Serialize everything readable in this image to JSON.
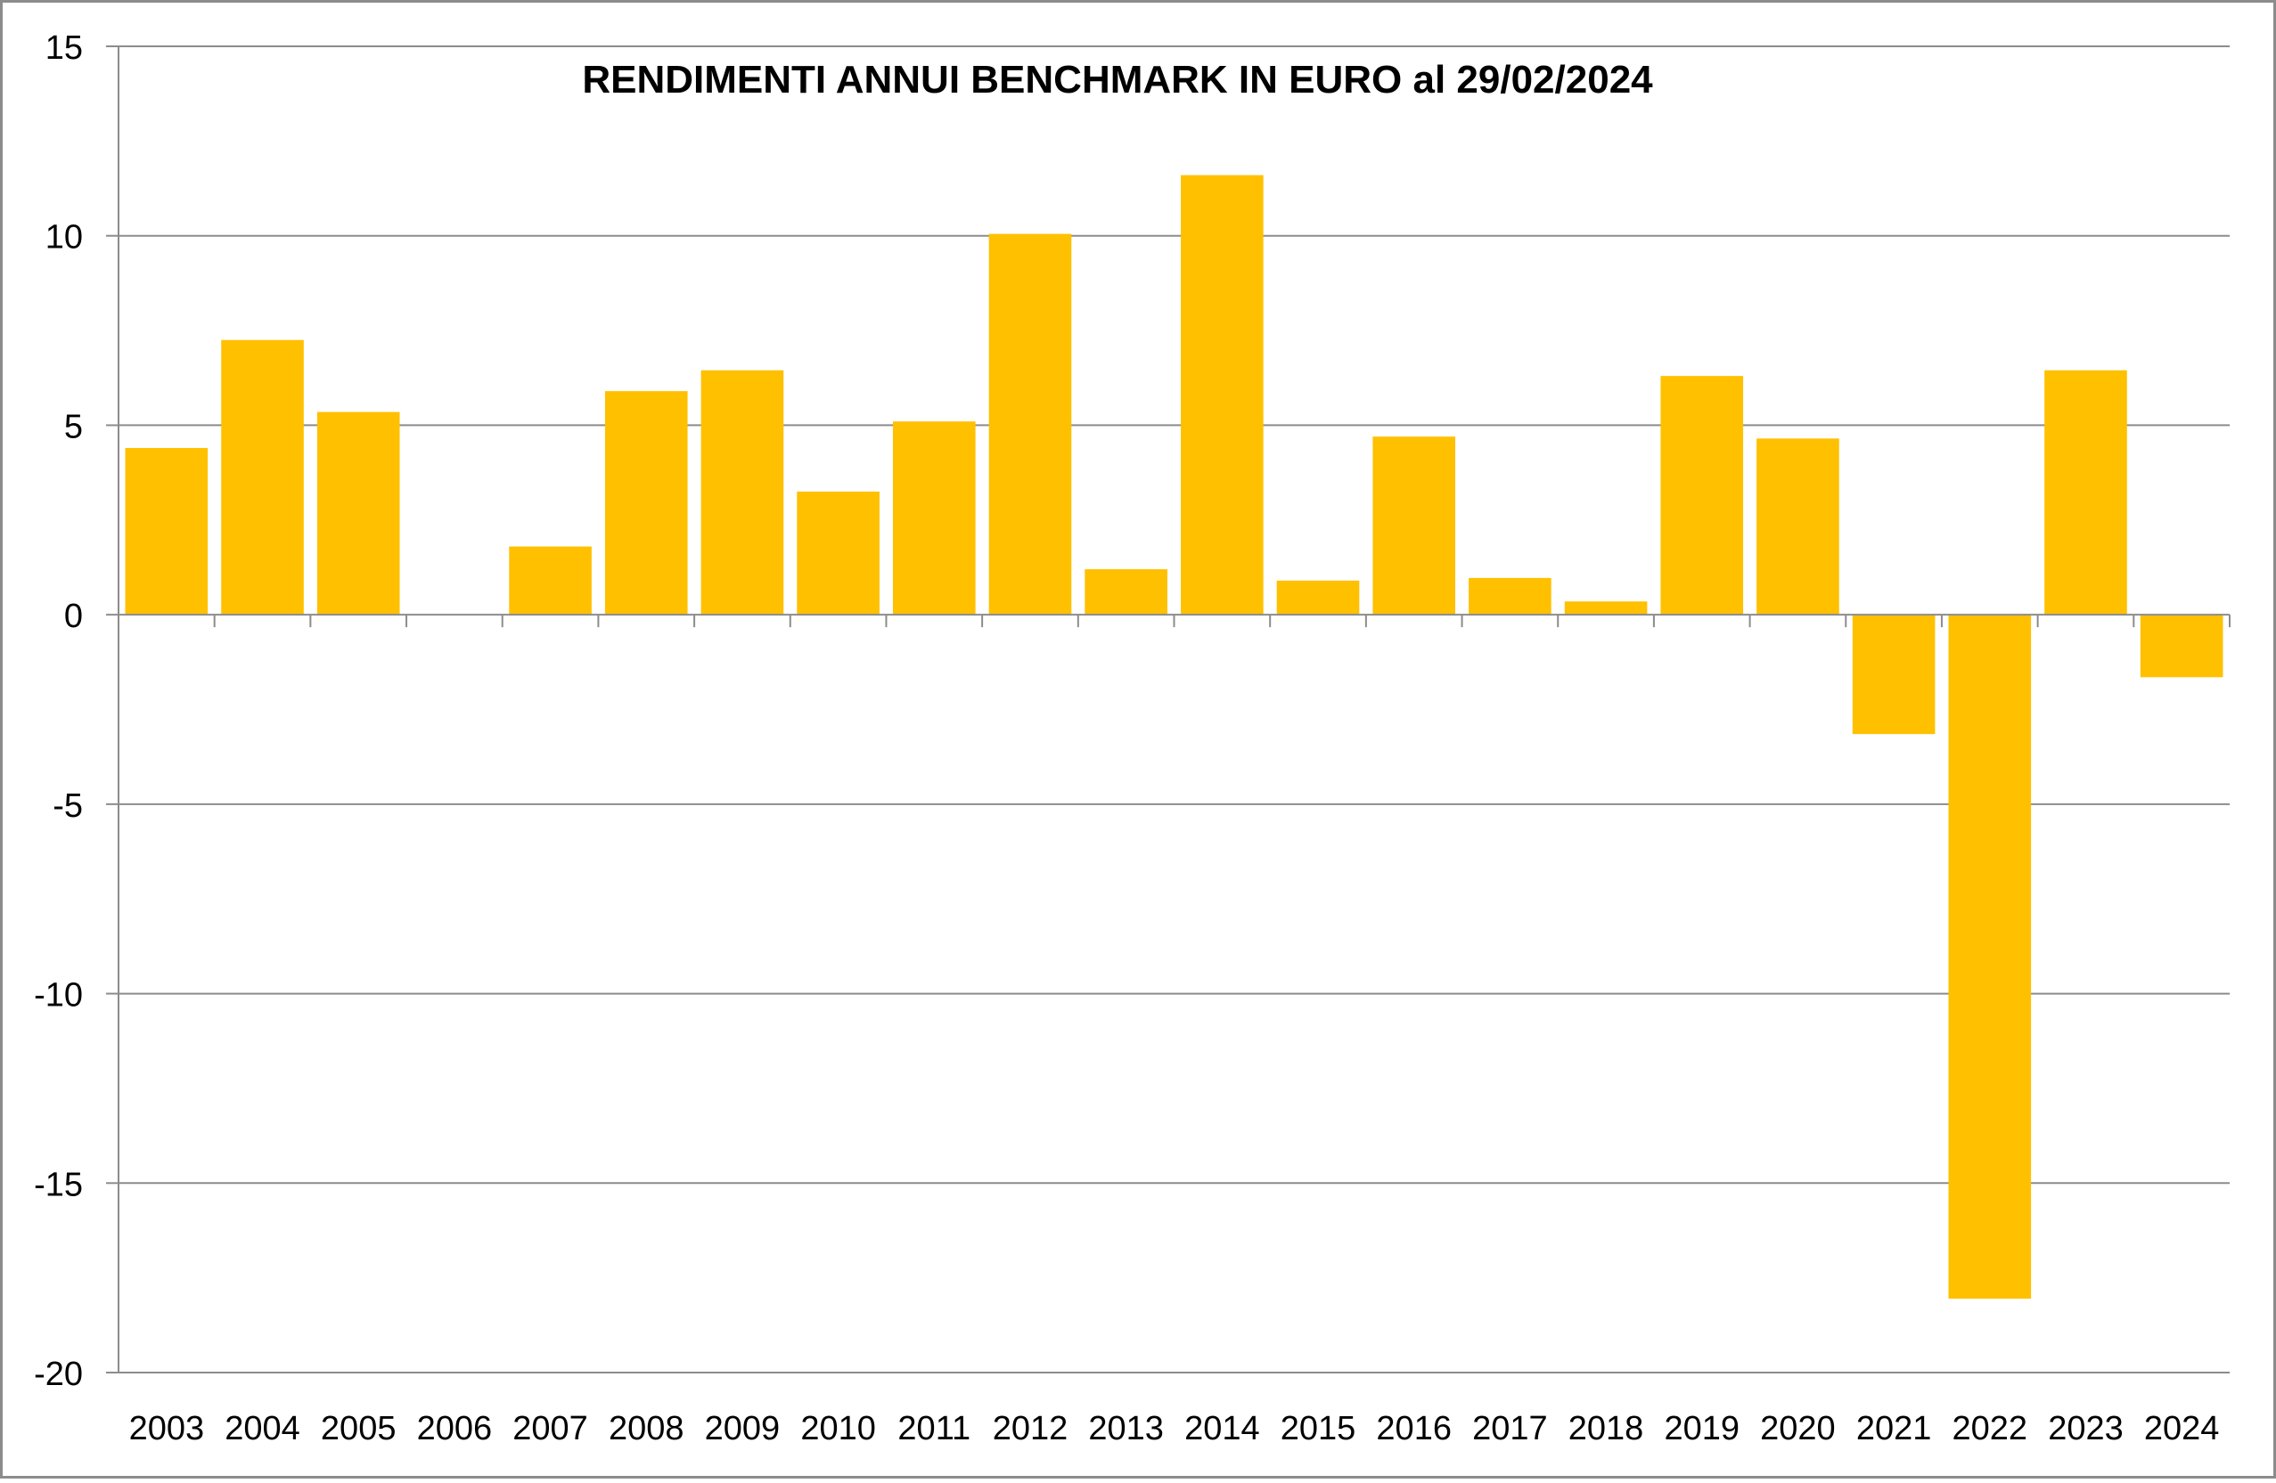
{
  "chart_data": {
    "type": "bar",
    "title": "RENDIMENTI ANNUI BENCHMARK IN EURO al 29/02/2024",
    "xlabel": "",
    "ylabel": "",
    "categories": [
      "2003",
      "2004",
      "2005",
      "2006",
      "2007",
      "2008",
      "2009",
      "2010",
      "2011",
      "2012",
      "2013",
      "2014",
      "2015",
      "2016",
      "2017",
      "2018",
      "2019",
      "2020",
      "2021",
      "2022",
      "2023",
      "2024"
    ],
    "values": [
      4.4,
      7.25,
      5.35,
      0,
      1.8,
      5.9,
      6.45,
      3.25,
      5.1,
      10.05,
      1.2,
      11.6,
      0.9,
      4.7,
      0.97,
      0.35,
      6.3,
      4.65,
      -3.15,
      -18.05,
      6.45,
      -1.65
    ],
    "ylim": [
      -20,
      15
    ],
    "yticks": [
      15,
      10,
      5,
      0,
      -5,
      -10,
      -15,
      -20
    ],
    "grid": true,
    "legend": "none",
    "bar_color": "#FFC000",
    "gridline_color": "#8c8c8c",
    "axis_color": "#8c8c8c",
    "border_color": "#8c8c8c"
  }
}
